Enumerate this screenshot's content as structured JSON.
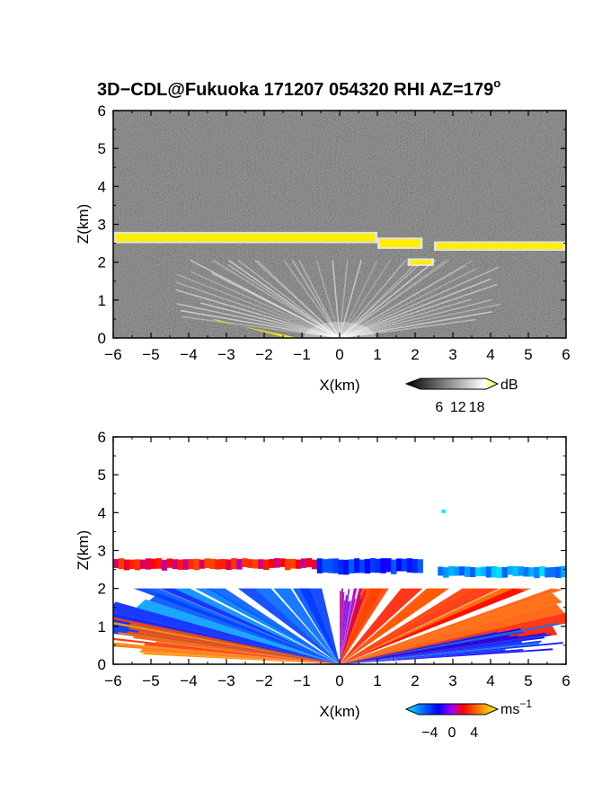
{
  "title_main": "3D−CDL@Fukuoka 171207 054320 RHI AZ=179",
  "title_deg": "o",
  "chart_data": [
    {
      "type": "heatmap",
      "quantity": "reflectivity",
      "xlabel": "X(km)",
      "ylabel": "Z(km)",
      "xlim": [
        -6,
        6
      ],
      "ylim": [
        0,
        6
      ],
      "xticks": [
        "−6",
        "−5",
        "−4",
        "−3",
        "−2",
        "−1",
        "0",
        "1",
        "2",
        "3",
        "4",
        "5",
        "6"
      ],
      "yticks": [
        "0",
        "1",
        "2",
        "3",
        "4",
        "5",
        "6"
      ],
      "colorbar": {
        "unit": "dB",
        "ticks": [
          "6",
          "12",
          "18"
        ],
        "range": [
          0,
          21
        ],
        "scheme": "grayscale-yellow"
      },
      "layers": [
        {
          "feature": "cloud layer",
          "x": [
            -6,
            1.0
          ],
          "z": [
            2.5,
            2.8
          ],
          "level": "high"
        },
        {
          "feature": "cloud layer",
          "x": [
            1.0,
            2.2
          ],
          "z": [
            2.35,
            2.65
          ],
          "level": "high"
        },
        {
          "feature": "cloud layer",
          "x": [
            2.5,
            6.0
          ],
          "z": [
            2.3,
            2.55
          ],
          "level": "high"
        },
        {
          "feature": "cloud fragment",
          "x": [
            1.8,
            2.5
          ],
          "z": [
            1.9,
            2.1
          ],
          "level": "high"
        },
        {
          "feature": "ground clutter",
          "x": [
            -3.5,
            -1.0
          ],
          "z": [
            0.0,
            0.55
          ],
          "level": "high"
        },
        {
          "feature": "near-range fan",
          "x": [
            -4.5,
            3.0
          ],
          "z": [
            0.0,
            2.0
          ],
          "level": "medium"
        }
      ]
    },
    {
      "type": "heatmap",
      "quantity": "doppler velocity",
      "xlabel": "X(km)",
      "ylabel": "Z(km)",
      "xlim": [
        -6,
        6
      ],
      "ylim": [
        0,
        6
      ],
      "xticks": [
        "−6",
        "−5",
        "−4",
        "−3",
        "−2",
        "−1",
        "0",
        "1",
        "2",
        "3",
        "4",
        "5",
        "6"
      ],
      "yticks": [
        "0",
        "1",
        "2",
        "3",
        "4",
        "5",
        "6"
      ],
      "colorbar": {
        "unit": "ms",
        "unit_exp": "−1",
        "ticks": [
          "−4",
          "0",
          "4"
        ],
        "range": [
          -6,
          6
        ],
        "scheme": "blue-red-yellow"
      },
      "layers": [
        {
          "feature": "cloud layer",
          "x": [
            -6,
            -0.6
          ],
          "z": [
            2.5,
            2.8
          ],
          "velocity": 1.5
        },
        {
          "feature": "cloud layer",
          "x": [
            -0.6,
            2.2
          ],
          "z": [
            2.4,
            2.8
          ],
          "velocity": -2.5
        },
        {
          "feature": "cloud layer",
          "x": [
            2.6,
            6.0
          ],
          "z": [
            2.3,
            2.6
          ],
          "velocity": -4.5
        },
        {
          "feature": "echo fan (approaching)",
          "x": [
            -4.0,
            0.0
          ],
          "z": [
            0.0,
            2.0
          ],
          "velocity": 2.5
        },
        {
          "feature": "echo fan (receding)",
          "x": [
            0.0,
            3.5
          ],
          "z": [
            0.9,
            2.0
          ],
          "velocity": -3.5
        },
        {
          "feature": "echo fan low",
          "x": [
            0.0,
            3.0
          ],
          "z": [
            0.0,
            0.9
          ],
          "velocity": 3.0
        },
        {
          "feature": "echo fan low",
          "x": [
            -2.5,
            0.0
          ],
          "z": [
            0.0,
            0.8
          ],
          "velocity": -3.0
        },
        {
          "feature": "isolated echo",
          "x": [
            2.7,
            2.8
          ],
          "z": [
            4.0,
            4.1
          ],
          "velocity": -5.5
        }
      ]
    }
  ]
}
